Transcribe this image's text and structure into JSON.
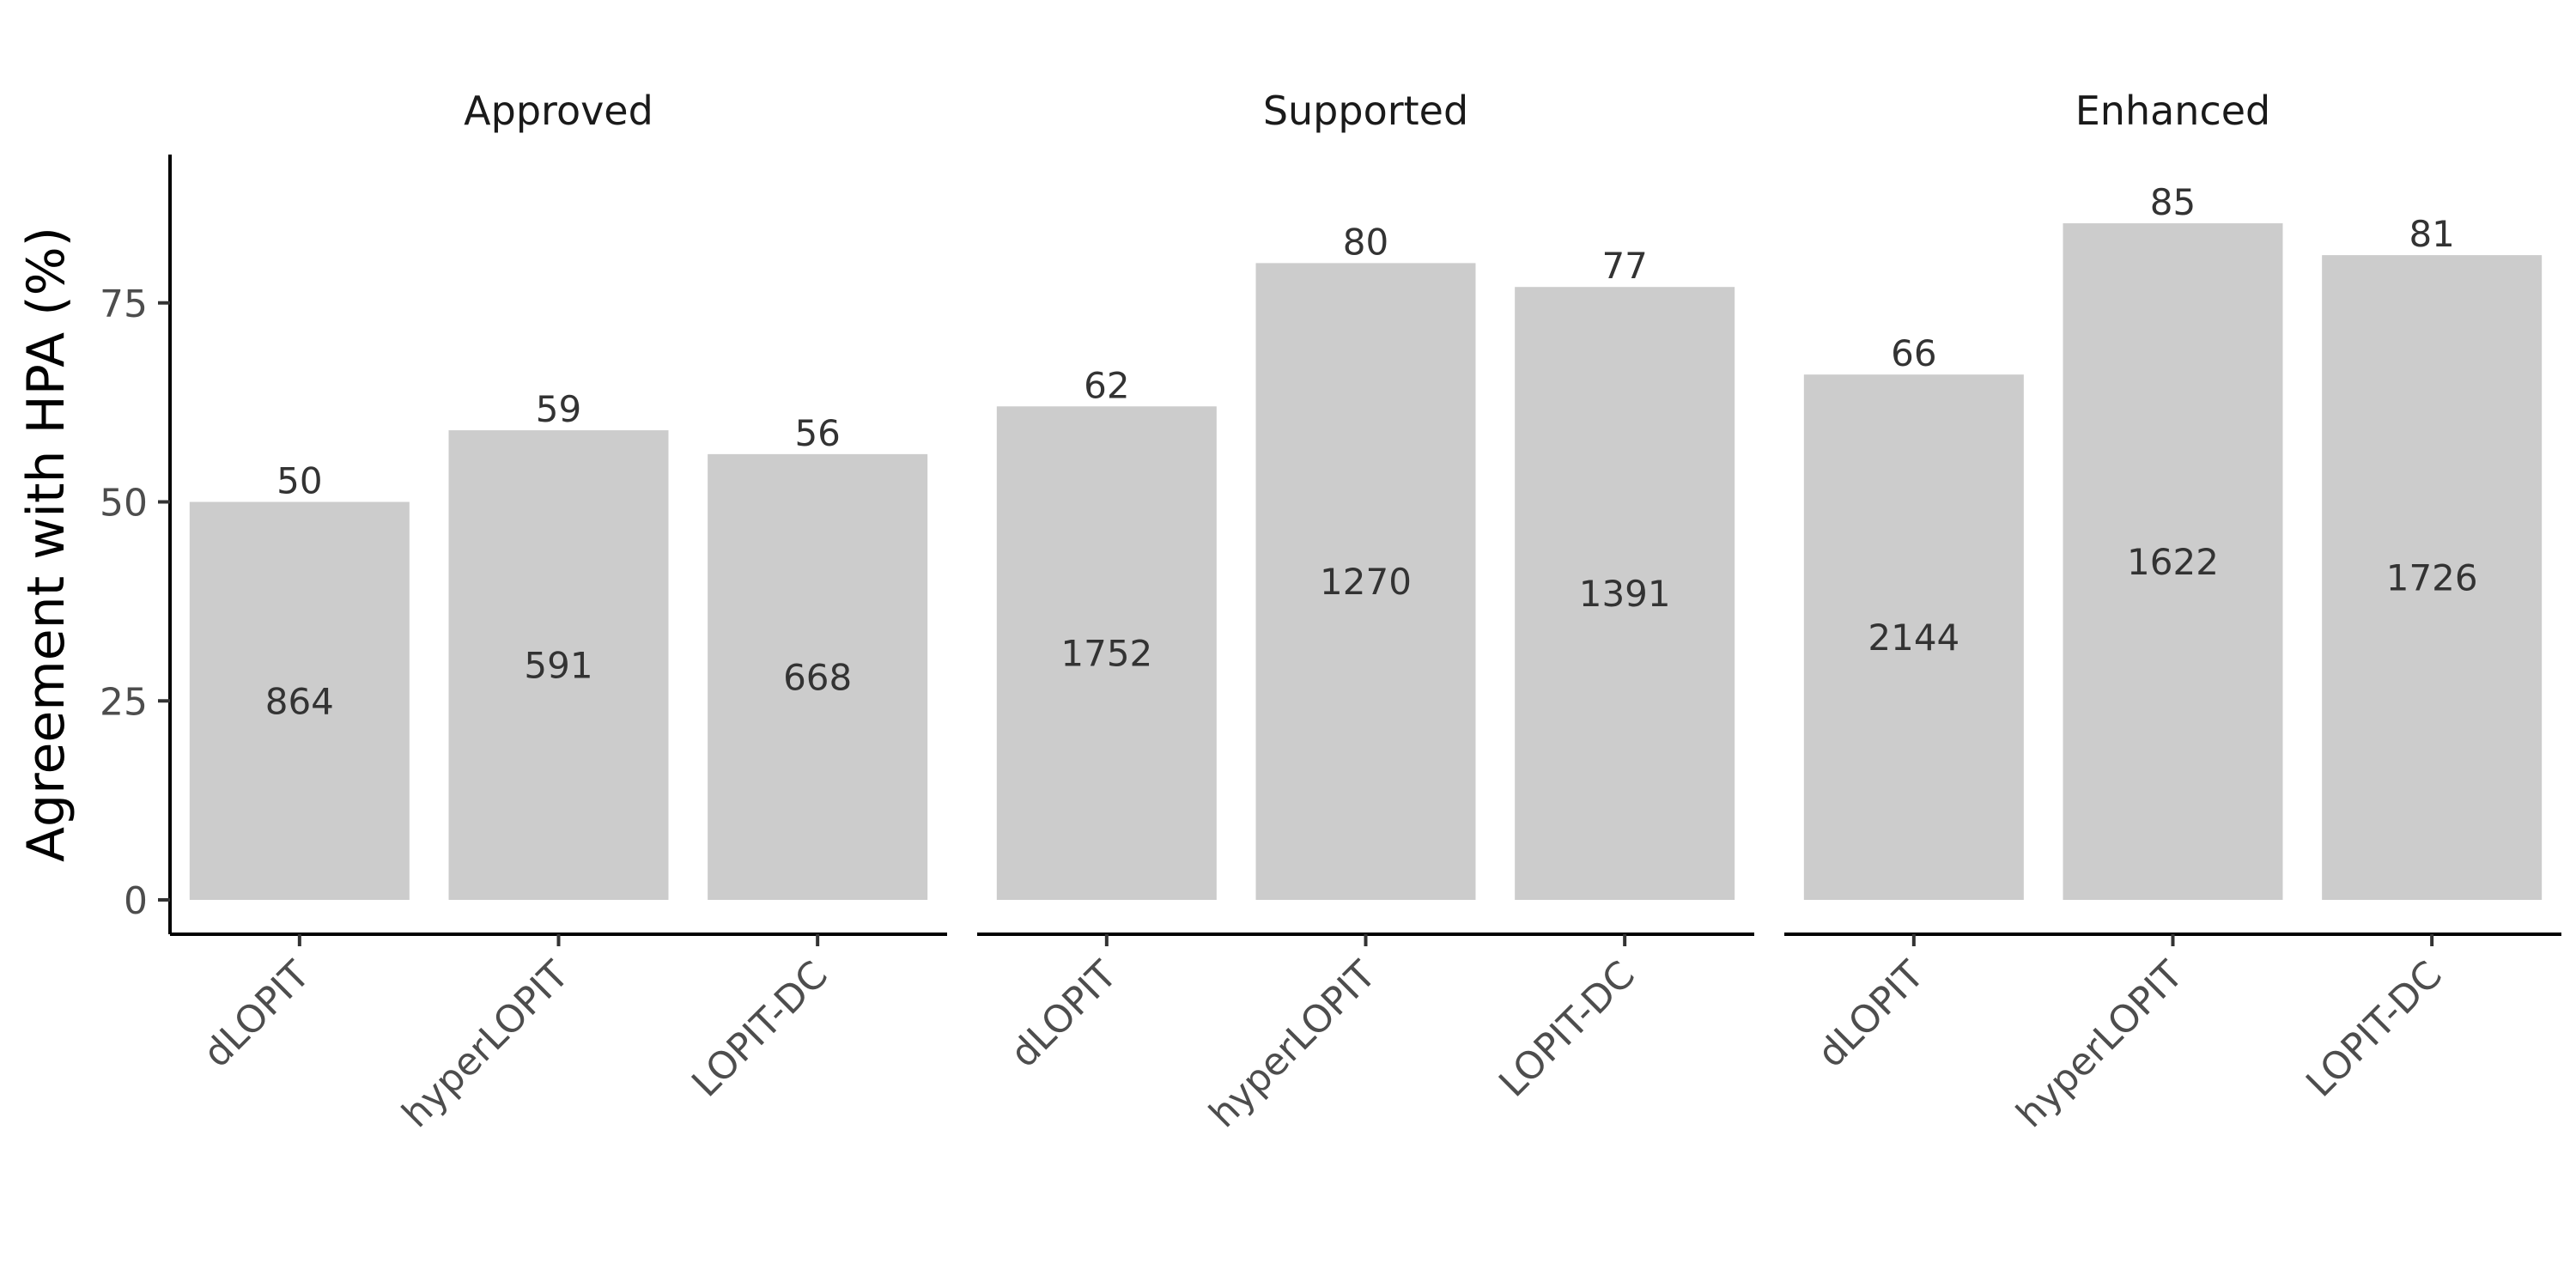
{
  "chart_data": {
    "type": "bar",
    "ylabel": "Agreement with HPA (%)",
    "xlabel": "",
    "ylim": [
      0,
      92
    ],
    "yticks": [
      0,
      25,
      50,
      75
    ],
    "grid": false,
    "categories": [
      "dLOPIT",
      "hyperLOPIT",
      "LOPIT-DC"
    ],
    "bar_color": "#cccccc",
    "facets": [
      {
        "title": "Approved",
        "values": [
          50,
          59,
          56
        ],
        "counts": [
          864,
          591,
          668
        ],
        "label_values": [
          "50",
          "59",
          "56"
        ],
        "label_counts": [
          "864",
          "591",
          "668"
        ]
      },
      {
        "title": "Supported",
        "values": [
          62,
          80,
          77
        ],
        "counts": [
          1752,
          1270,
          1391
        ],
        "label_values": [
          "62",
          "80",
          "77"
        ],
        "label_counts": [
          "1752",
          "1270",
          "1391"
        ]
      },
      {
        "title": "Enhanced",
        "values": [
          66,
          85,
          81
        ],
        "counts": [
          2144,
          1622,
          1726
        ],
        "label_values": [
          "66",
          "85",
          "81"
        ],
        "label_counts": [
          "2144",
          "1622",
          "1726"
        ]
      }
    ]
  }
}
